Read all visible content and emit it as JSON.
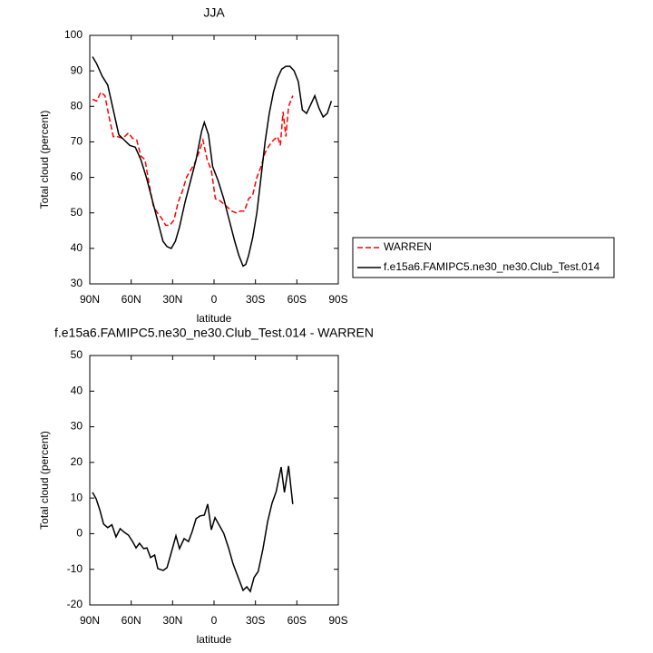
{
  "chart_data": [
    {
      "type": "line",
      "title": "JJA",
      "xlabel": "latitude",
      "ylabel": "Total cloud (percent)",
      "xlim": [
        90,
        -90
      ],
      "ylim": [
        30,
        100
      ],
      "xticks": [
        {
          "value": 90,
          "label": "90N"
        },
        {
          "value": 60,
          "label": "60N"
        },
        {
          "value": 30,
          "label": "30N"
        },
        0,
        {
          "value": -30,
          "label": "30S"
        },
        {
          "value": -60,
          "label": "60S"
        },
        {
          "value": -90,
          "label": "90S"
        }
      ],
      "yticks": [
        30,
        40,
        50,
        60,
        70,
        80,
        90,
        100
      ],
      "legend": "right",
      "series": [
        {
          "name": "WARREN",
          "color": "#ff0000",
          "dashed": true,
          "x": [
            88,
            85,
            82,
            79,
            76,
            73,
            70,
            66,
            62,
            59,
            56,
            53,
            50,
            47,
            44,
            41,
            38,
            35,
            32,
            29,
            26,
            23,
            20,
            17,
            14,
            11,
            8,
            5,
            2,
            -1,
            -4,
            -7,
            -10,
            -13,
            -16,
            -19,
            -22,
            -25,
            -28,
            -31,
            -34,
            -37,
            -40,
            -43,
            -46,
            -48,
            -50,
            -52,
            -54,
            -57
          ],
          "values": [
            82,
            81.5,
            84,
            83,
            77,
            71.5,
            71.5,
            71,
            72.5,
            71,
            70.5,
            66,
            65,
            58,
            52,
            50,
            48.5,
            46.5,
            46.5,
            48,
            53,
            56,
            60,
            62,
            64,
            67,
            70.5,
            65,
            62,
            54,
            53.5,
            52.5,
            51.5,
            50.5,
            50,
            50.5,
            50.5,
            54,
            55,
            60,
            63,
            67,
            69,
            70.5,
            71.5,
            69,
            78.5,
            71.5,
            80,
            83
          ]
        },
        {
          "name": "f.e15a6.FAMIPC5.ne30_ne30.Club_Test.014",
          "color": "#000000",
          "dashed": false,
          "x": [
            88,
            85,
            81,
            77,
            73,
            69,
            65,
            61,
            57,
            53,
            49,
            45,
            41,
            37,
            34,
            31,
            28,
            25,
            21,
            17,
            13,
            9,
            7,
            4,
            1,
            -3,
            -7,
            -11,
            -15,
            -18,
            -21,
            -23,
            -25,
            -28,
            -31,
            -34,
            -37,
            -40,
            -43,
            -46,
            -49,
            -52,
            -55,
            -58,
            -61,
            -64,
            -67,
            -70,
            -73,
            -76,
            -79,
            -82,
            -85
          ],
          "values": [
            94,
            92,
            88.5,
            86,
            79,
            72,
            70.5,
            69,
            68.5,
            65,
            60,
            54,
            48,
            42,
            40.5,
            40,
            42,
            46,
            53,
            59,
            65,
            73,
            75.5,
            72,
            63,
            59,
            54,
            48,
            42,
            38,
            35,
            35.5,
            38,
            43,
            50,
            60,
            70,
            78,
            84,
            88,
            90.5,
            91.3,
            91.3,
            90,
            87,
            79,
            78,
            80.5,
            83,
            79.5,
            77,
            78,
            81.5
          ]
        }
      ]
    },
    {
      "type": "line",
      "title": "f.e15a6.FAMIPC5.ne30_ne30.Club_Test.014 - WARREN",
      "xlabel": "latitude",
      "ylabel": "Total cloud (percent)",
      "xlim": [
        90,
        -90
      ],
      "ylim": [
        -20,
        50
      ],
      "xticks": [
        {
          "value": 90,
          "label": "90N"
        },
        {
          "value": 60,
          "label": "60N"
        },
        {
          "value": 30,
          "label": "30N"
        },
        0,
        {
          "value": -30,
          "label": "30S"
        },
        {
          "value": -60,
          "label": "60S"
        },
        {
          "value": -90,
          "label": "90S"
        }
      ],
      "yticks": [
        -20,
        -10,
        0,
        10,
        20,
        30,
        40,
        50
      ],
      "series": [
        {
          "color": "#000000",
          "dashed": false,
          "x": [
            88,
            85.4,
            82.8,
            80,
            77,
            74,
            71,
            68,
            65,
            62,
            59,
            56.5,
            54,
            51,
            48.6,
            46,
            43,
            40.7,
            36.8,
            34,
            31.5,
            27.6,
            25,
            21.7,
            18.5,
            15.8,
            13,
            10,
            7,
            4.6,
            2,
            -0.7,
            -4,
            -7,
            -10.5,
            -13.8,
            -17.8,
            -21,
            -23.7,
            -26.3,
            -29,
            -32,
            -35.5,
            -38.8,
            -42,
            -45,
            -48.6,
            -51,
            -54,
            -57
          ],
          "values": [
            11.6,
            9.8,
            6.7,
            2.7,
            1.7,
            2.5,
            -0.9,
            1.4,
            0.4,
            -0.4,
            -2.2,
            -4,
            -2.7,
            -4.2,
            -4,
            -6.7,
            -6,
            -9.8,
            -10.3,
            -9.5,
            -6,
            -0.6,
            -4.2,
            -1.4,
            -2.2,
            0.6,
            4.2,
            5,
            5.2,
            8.3,
            1.1,
            4.5,
            2.2,
            0.1,
            -4,
            -8.5,
            -12.6,
            -15.9,
            -14.9,
            -16.2,
            -12.3,
            -10.6,
            -4.2,
            3.4,
            8.5,
            11.8,
            18.7,
            11.6,
            19,
            8.3
          ]
        }
      ]
    }
  ]
}
